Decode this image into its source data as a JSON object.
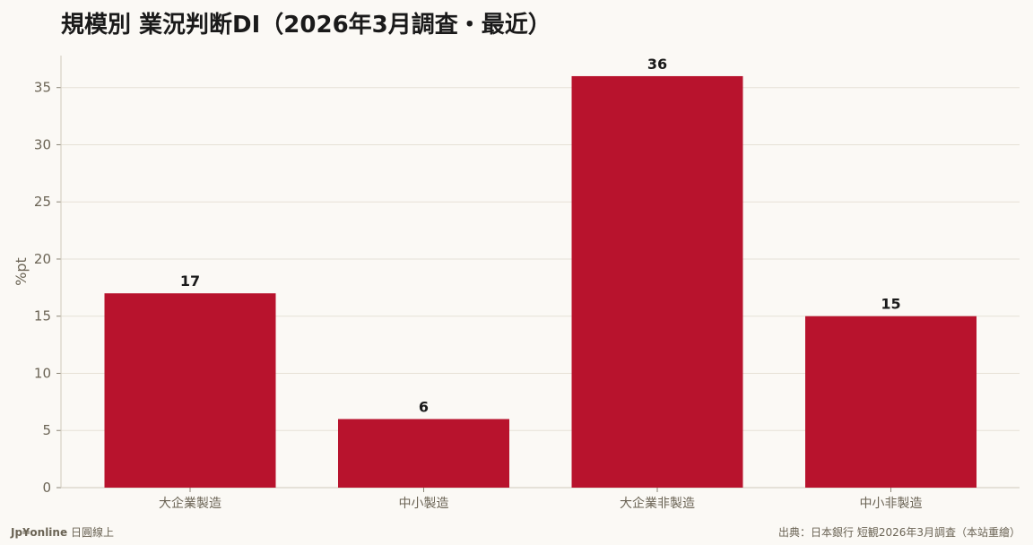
{
  "chart_data": {
    "type": "bar",
    "title": "規模別 業況判断DI（2026年3月調査・最近）",
    "ylabel": "%pt",
    "xlabel": "",
    "categories": [
      "大企業製造",
      "中小製造",
      "大企業非製造",
      "中小非製造"
    ],
    "values": [
      17,
      6,
      36,
      15
    ],
    "ylim": [
      0,
      37.8
    ],
    "yticks": [
      0,
      5,
      10,
      15,
      20,
      25,
      30,
      35
    ],
    "grid": true,
    "legend": "none",
    "bar_color": "#b8132d"
  },
  "footer": {
    "brand": "Jp¥online",
    "brand_sub": "日圓線上",
    "source": "出典：日本銀行 短観2026年3月調査（本站重繪）"
  }
}
